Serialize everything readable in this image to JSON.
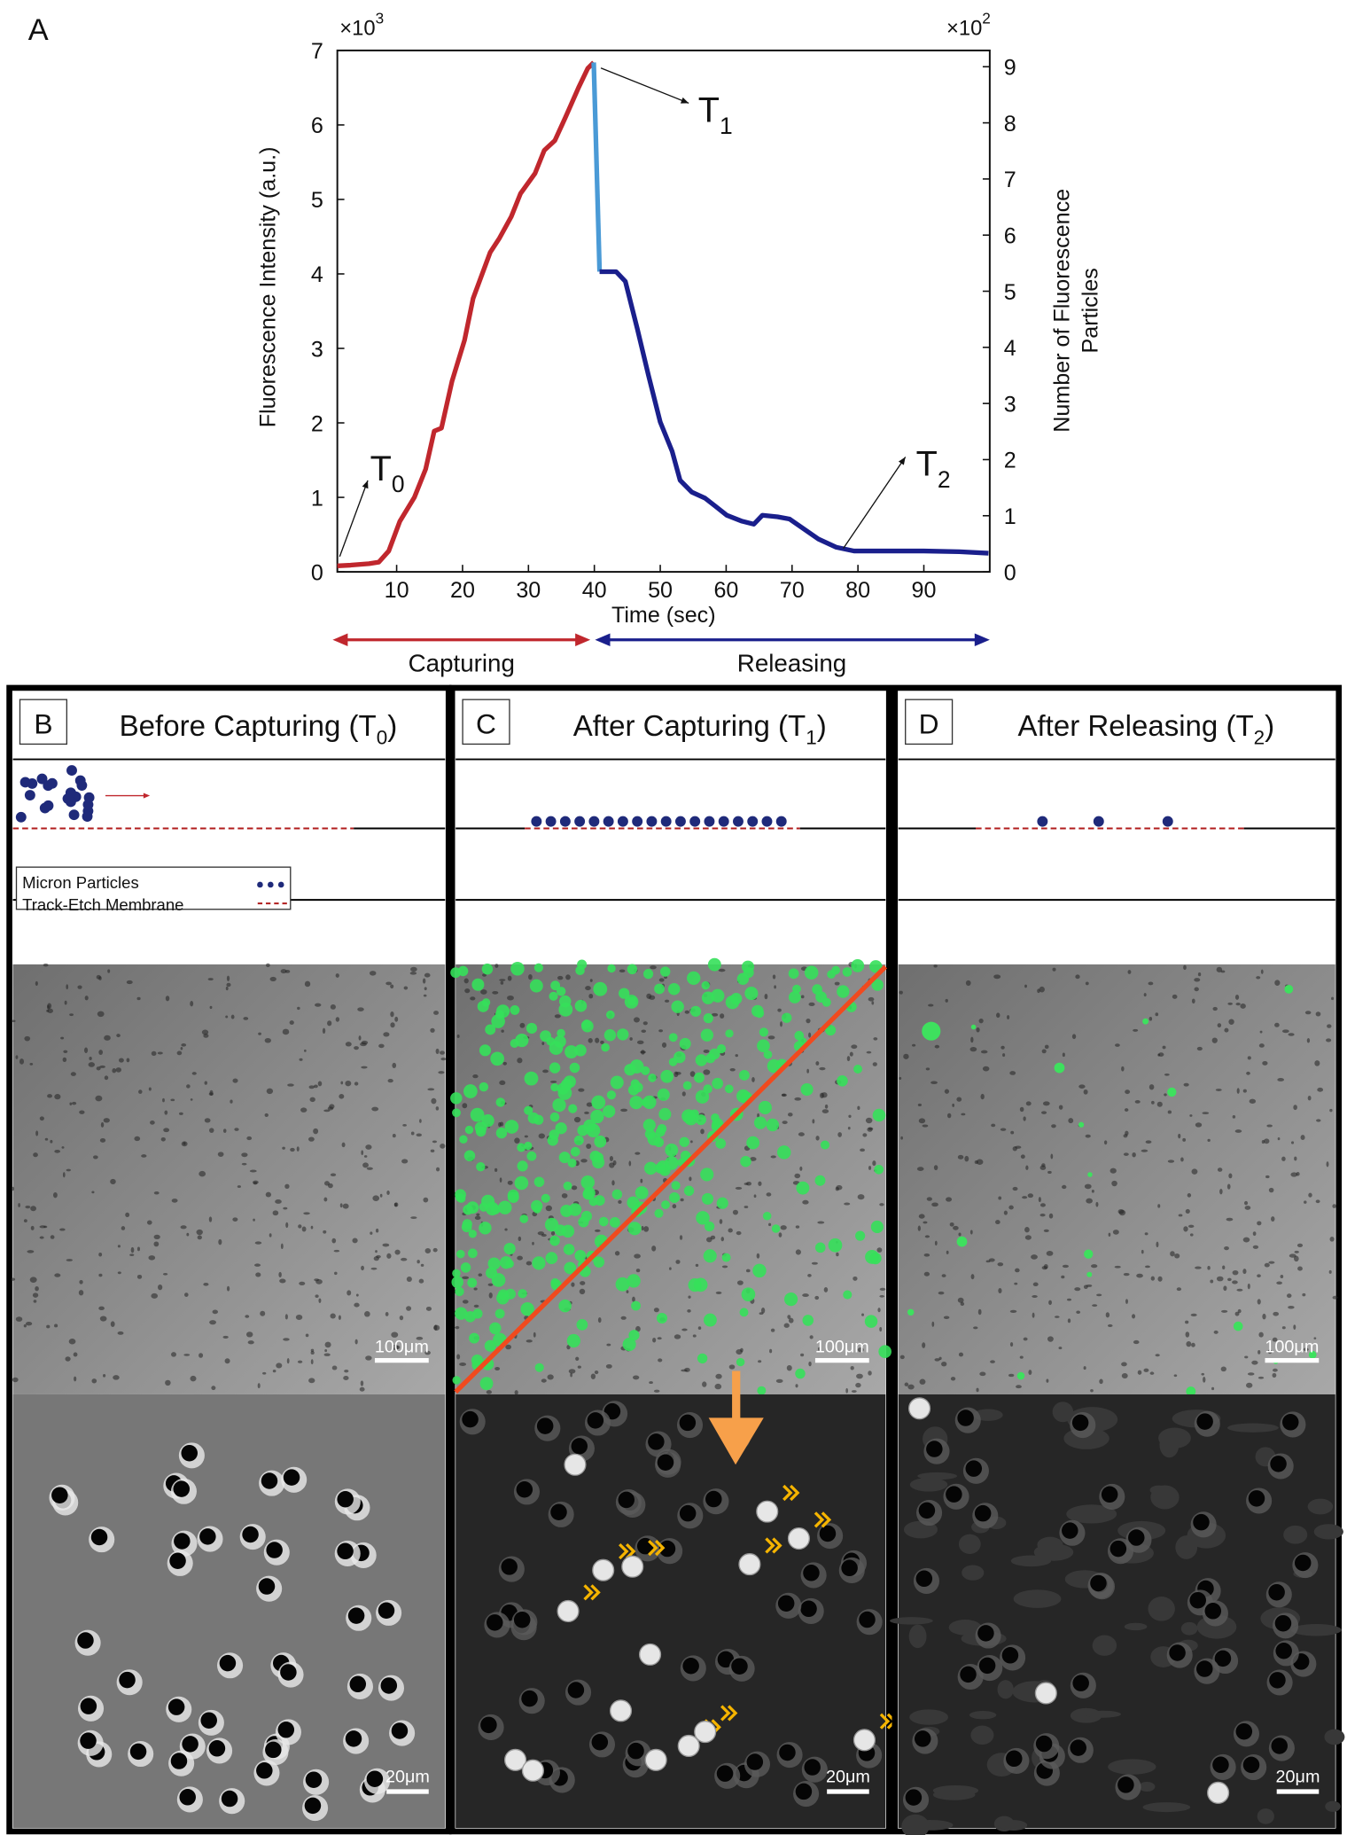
{
  "panel_label": "A",
  "chart_data": {
    "type": "line",
    "x_label": "Time (sec)",
    "y_label": "Fluorescence Intensity (a.u.)",
    "y2_label": [
      "Number of Fluorescence",
      "Particles"
    ],
    "y_multiplier": {
      "text": "×10",
      "sup": "3"
    },
    "y2_multiplier": {
      "text": "×10",
      "sup": "2"
    },
    "xlim": [
      1,
      100
    ],
    "xticks": [
      10,
      20,
      30,
      40,
      50,
      60,
      70,
      80,
      90
    ],
    "ylim": [
      0,
      7
    ],
    "yticks": [
      0,
      1,
      2,
      3,
      4,
      5,
      6,
      7
    ],
    "y2lim": [
      0,
      9.29
    ],
    "y2ticks": [
      0,
      1,
      2,
      3,
      4,
      5,
      6,
      7,
      8,
      9
    ],
    "series": [
      {
        "name": "Capturing",
        "color": "#c0272d",
        "x": [
          1,
          3,
          5.8,
          7.3,
          8.8,
          10.5,
          12.7,
          14.4,
          15.7,
          16.8,
          18.4,
          20.3,
          21.6,
          24.2,
          25.6,
          27.4,
          28.8,
          31,
          32.4,
          34,
          35.6,
          37.6,
          39,
          39.9
        ],
        "values": [
          0.08,
          0.09,
          0.11,
          0.13,
          0.28,
          0.68,
          1.0,
          1.38,
          1.89,
          1.93,
          2.56,
          3.11,
          3.67,
          4.29,
          4.48,
          4.77,
          5.08,
          5.35,
          5.66,
          5.79,
          6.1,
          6.5,
          6.76,
          6.84
        ]
      },
      {
        "color": "#4a9ad6",
        "x": [
          39.9,
          40.8
        ],
        "values": [
          6.84,
          4.03
        ]
      },
      {
        "name": "Releasing",
        "color": "#1a1f8c",
        "x": [
          40.8,
          43.3,
          44.7,
          46.5,
          48.2,
          50,
          51.8,
          53,
          54.8,
          56.8,
          58.4,
          60.1,
          62.4,
          64.2,
          65.5,
          67.8,
          69.6,
          71.4,
          74,
          76.7,
          79.4,
          84.7,
          90,
          95.4,
          99.8
        ],
        "values": [
          4.03,
          4.03,
          3.9,
          3.27,
          2.64,
          2.01,
          1.62,
          1.23,
          1.07,
          0.99,
          0.88,
          0.76,
          0.68,
          0.64,
          0.76,
          0.74,
          0.71,
          0.6,
          0.44,
          0.33,
          0.28,
          0.28,
          0.28,
          0.27,
          0.25
        ]
      }
    ],
    "annotations": [
      {
        "text": "T",
        "sub": "0"
      },
      {
        "text": "T",
        "sub": "1"
      },
      {
        "text": "T",
        "sub": "2"
      }
    ]
  },
  "panels": [
    {
      "letter": "B",
      "title": {
        "text": "Before Capturing (T",
        "sub": "0",
        "end": ")"
      },
      "scale_top": "100μm",
      "scale_bottom": "20μm",
      "legend": [
        "Micron Particles",
        "Track-Etch Membrane"
      ]
    },
    {
      "letter": "C",
      "title": {
        "text": "After Capturing (T",
        "sub": "1",
        "end": ")"
      },
      "scale_top": "100μm",
      "scale_bottom": "20μm"
    },
    {
      "letter": "D",
      "title": {
        "text": "After Releasing (T",
        "sub": "2",
        "end": ")"
      },
      "scale_top": "100μm",
      "scale_bottom": "20μm"
    }
  ]
}
